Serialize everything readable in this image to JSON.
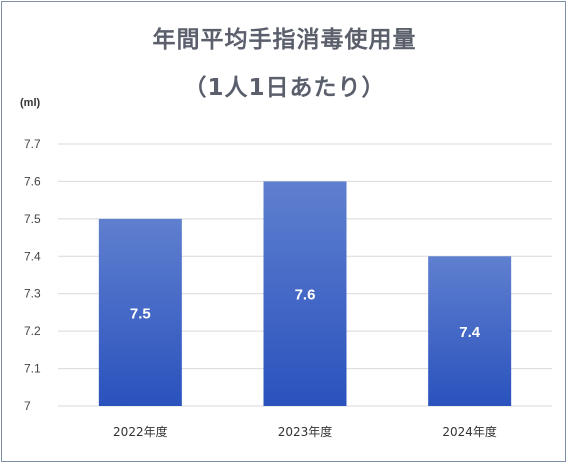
{
  "chart_data": {
    "type": "bar",
    "title": "年間平均手指消毒使用量",
    "subtitle": "（1人1日あたり）",
    "unit_label": "(ml)",
    "categories": [
      "2022年度",
      "2023年度",
      "2024年度"
    ],
    "values": [
      7.5,
      7.6,
      7.4
    ],
    "data_labels": [
      "7.5",
      "7.6",
      "7.4"
    ],
    "ylim": [
      7.0,
      7.7
    ],
    "yticks": [
      7.7,
      7.6,
      7.5,
      7.4,
      7.3,
      7.2,
      7.1,
      7
    ],
    "ytick_labels": [
      "7.7",
      "7.6",
      "7.5",
      "7.4",
      "7.3",
      "7.2",
      "7.1",
      "7"
    ],
    "grid": true,
    "legend": "none",
    "bar_color_top": "#5f7fcf",
    "bar_color_bottom": "#2a52bd",
    "gridline_color": "#d9d9d9"
  }
}
